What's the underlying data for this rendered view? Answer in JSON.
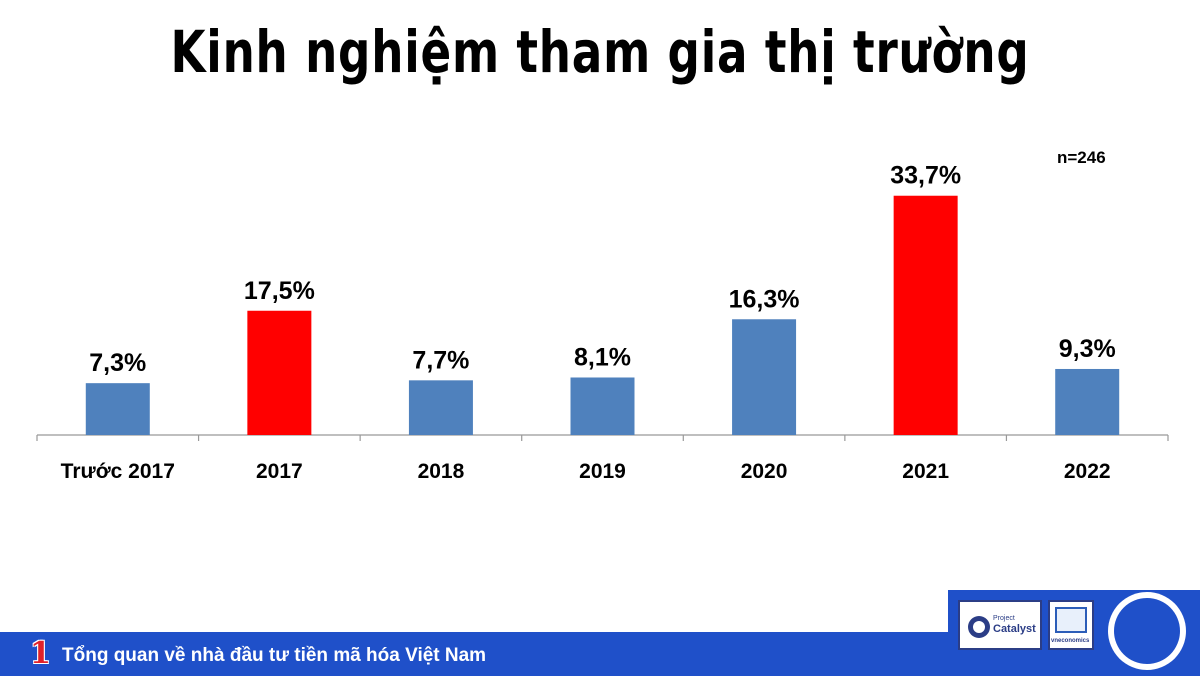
{
  "title": "Kinh nghiệm tham gia thị trường",
  "sample_note": "n=246",
  "footer": {
    "number": "1",
    "text": "Tổng quan về nhà đầu tư tiền mã hóa Việt Nam"
  },
  "logos": {
    "catalyst_top": "Project",
    "catalyst_main": "Catalyst",
    "vneconomics": "vneconomics"
  },
  "colors": {
    "default_bar": "#4f81bd",
    "highlight_bar": "#ff0000",
    "footer_bg": "#1f50c9"
  },
  "chart_data": {
    "type": "bar",
    "categories": [
      "Trước 2017",
      "2017",
      "2018",
      "2019",
      "2020",
      "2021",
      "2022"
    ],
    "values": [
      7.3,
      17.5,
      7.7,
      8.1,
      16.3,
      33.7,
      9.3
    ],
    "data_labels": [
      "7,3%",
      "17,5%",
      "7,7%",
      "8,1%",
      "16,3%",
      "33,7%",
      "9,3%"
    ],
    "highlighted": [
      false,
      true,
      false,
      false,
      false,
      true,
      false
    ],
    "unit": "%",
    "ylim": [
      0,
      36
    ],
    "grid": false,
    "legend": "none"
  }
}
